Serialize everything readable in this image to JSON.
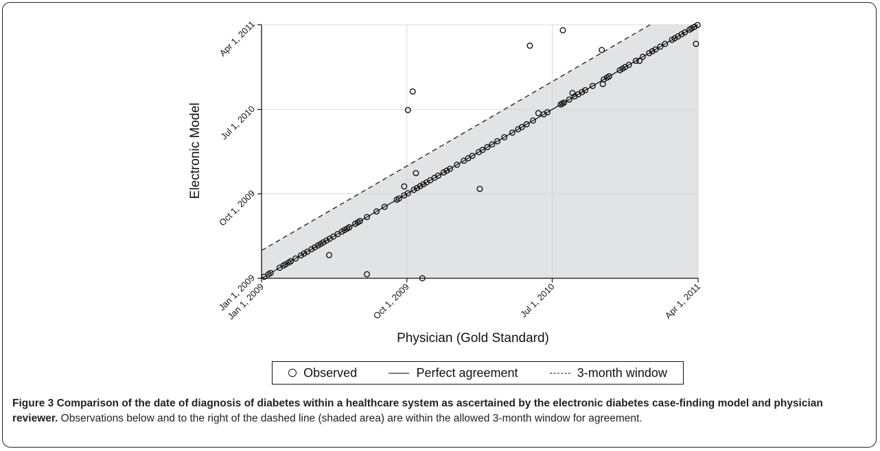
{
  "chart_data": {
    "type": "scatter",
    "xlabel": "Physician (Gold Standard)",
    "ylabel": "Electronic Model",
    "x_tick_labels": [
      "Jan 1, 2009",
      "Oct 1, 2009",
      "Jul 1, 2010",
      "Apr 1, 2011"
    ],
    "y_tick_labels": [
      "Jan 1, 2009",
      "Oct 1, 2009",
      "Jul 1, 2010",
      "Apr 1, 2011"
    ],
    "xlim": [
      "2009-01-01",
      "2011-04-01"
    ],
    "ylim": [
      "2009-01-01",
      "2011-04-01"
    ],
    "grid": true,
    "legend": [
      "Observed",
      "Perfect agreement",
      "3-month window"
    ],
    "legend_placement": "bottom",
    "shaded_region": "area below dashed line",
    "window_months": 3,
    "series": [
      {
        "name": "Observed",
        "points": [
          [
            "2009-01-06",
            "2009-01-06"
          ],
          [
            "2009-01-14",
            "2009-01-14"
          ],
          [
            "2009-01-18",
            "2009-01-18"
          ],
          [
            "2009-02-04",
            "2009-02-04"
          ],
          [
            "2009-02-11",
            "2009-02-11"
          ],
          [
            "2009-02-15",
            "2009-02-15"
          ],
          [
            "2009-02-21",
            "2009-02-21"
          ],
          [
            "2009-02-25",
            "2009-02-25"
          ],
          [
            "2009-03-06",
            "2009-03-06"
          ],
          [
            "2009-03-16",
            "2009-03-16"
          ],
          [
            "2009-03-22",
            "2009-03-22"
          ],
          [
            "2009-03-28",
            "2009-03-28"
          ],
          [
            "2009-04-05",
            "2009-04-05"
          ],
          [
            "2009-04-11",
            "2009-04-11"
          ],
          [
            "2009-04-17",
            "2009-04-17"
          ],
          [
            "2009-04-22",
            "2009-04-22"
          ],
          [
            "2009-04-27",
            "2009-04-27"
          ],
          [
            "2009-05-03",
            "2009-05-03"
          ],
          [
            "2009-05-09",
            "2009-05-09"
          ],
          [
            "2009-05-16",
            "2009-05-16"
          ],
          [
            "2009-05-24",
            "2009-05-24"
          ],
          [
            "2009-06-01",
            "2009-06-01"
          ],
          [
            "2009-06-06",
            "2009-06-06"
          ],
          [
            "2009-06-11",
            "2009-06-11"
          ],
          [
            "2009-06-15",
            "2009-06-15"
          ],
          [
            "2009-06-26",
            "2009-06-26"
          ],
          [
            "2009-07-01",
            "2009-07-01"
          ],
          [
            "2009-07-05",
            "2009-07-05"
          ],
          [
            "2009-07-18",
            "2009-07-18"
          ],
          [
            "2009-08-05",
            "2009-08-05"
          ],
          [
            "2009-08-20",
            "2009-08-20"
          ],
          [
            "2009-09-12",
            "2009-09-12"
          ],
          [
            "2009-09-16",
            "2009-09-16"
          ],
          [
            "2009-09-26",
            "2009-09-26"
          ],
          [
            "2009-10-03",
            "2009-10-03"
          ],
          [
            "2009-10-14",
            "2009-10-14"
          ],
          [
            "2009-10-20",
            "2009-10-20"
          ],
          [
            "2009-10-26",
            "2009-10-26"
          ],
          [
            "2009-11-01",
            "2009-11-01"
          ],
          [
            "2009-11-07",
            "2009-11-07"
          ],
          [
            "2009-11-14",
            "2009-11-14"
          ],
          [
            "2009-11-22",
            "2009-11-22"
          ],
          [
            "2009-11-29",
            "2009-11-29"
          ],
          [
            "2009-12-09",
            "2009-12-09"
          ],
          [
            "2009-12-15",
            "2009-12-15"
          ],
          [
            "2009-12-21",
            "2009-12-21"
          ],
          [
            "2010-01-03",
            "2010-01-03"
          ],
          [
            "2010-01-16",
            "2010-01-16"
          ],
          [
            "2010-01-24",
            "2010-01-24"
          ],
          [
            "2010-02-01",
            "2010-02-01"
          ],
          [
            "2010-02-13",
            "2010-02-13"
          ],
          [
            "2010-02-20",
            "2010-02-20"
          ],
          [
            "2010-03-01",
            "2010-03-01"
          ],
          [
            "2010-03-10",
            "2010-03-10"
          ],
          [
            "2010-03-20",
            "2010-03-20"
          ],
          [
            "2010-04-02",
            "2010-04-02"
          ],
          [
            "2010-04-17",
            "2010-04-17"
          ],
          [
            "2010-04-28",
            "2010-04-28"
          ],
          [
            "2010-05-05",
            "2010-05-05"
          ],
          [
            "2010-05-14",
            "2010-05-14"
          ],
          [
            "2010-05-26",
            "2010-05-26"
          ],
          [
            "2010-06-15",
            "2010-06-15"
          ],
          [
            "2010-06-22",
            "2010-06-22"
          ],
          [
            "2010-07-17",
            "2010-07-17"
          ],
          [
            "2010-07-20",
            "2010-07-20"
          ],
          [
            "2010-07-23",
            "2010-07-23"
          ],
          [
            "2010-08-02",
            "2010-08-02"
          ],
          [
            "2010-08-12",
            "2010-08-12"
          ],
          [
            "2010-08-19",
            "2010-08-19"
          ],
          [
            "2010-08-26",
            "2010-08-26"
          ],
          [
            "2010-09-01",
            "2010-09-01"
          ],
          [
            "2010-09-15",
            "2010-09-15"
          ],
          [
            "2010-10-06",
            "2010-10-06"
          ],
          [
            "2010-10-12",
            "2010-10-12"
          ],
          [
            "2010-10-16",
            "2010-10-16"
          ],
          [
            "2010-11-05",
            "2010-11-05"
          ],
          [
            "2010-11-10",
            "2010-11-10"
          ],
          [
            "2010-11-15",
            "2010-11-15"
          ],
          [
            "2010-11-22",
            "2010-11-22"
          ],
          [
            "2010-12-05",
            "2010-12-05"
          ],
          [
            "2010-12-18",
            "2010-12-18"
          ],
          [
            "2010-12-30",
            "2010-12-30"
          ],
          [
            "2011-01-05",
            "2011-01-05"
          ],
          [
            "2011-01-11",
            "2011-01-11"
          ],
          [
            "2011-01-20",
            "2011-01-20"
          ],
          [
            "2011-01-29",
            "2011-01-29"
          ],
          [
            "2011-02-11",
            "2011-02-11"
          ],
          [
            "2011-02-16",
            "2011-02-16"
          ],
          [
            "2011-02-22",
            "2011-02-22"
          ],
          [
            "2011-03-01",
            "2011-03-01"
          ],
          [
            "2011-03-07",
            "2011-03-07"
          ],
          [
            "2011-03-16",
            "2011-03-16"
          ],
          [
            "2011-03-20",
            "2011-03-20"
          ],
          [
            "2011-03-25",
            "2011-03-25"
          ],
          [
            "2011-03-31",
            "2011-03-31"
          ],
          [
            "2009-09-26",
            "2009-10-25"
          ],
          [
            "2009-10-18",
            "2009-12-07"
          ],
          [
            "2010-08-08",
            "2010-08-23"
          ],
          [
            "2010-10-04",
            "2010-09-21"
          ],
          [
            "2010-12-12",
            "2010-12-05"
          ],
          [
            "2010-06-05",
            "2010-06-19"
          ],
          [
            "2010-10-02",
            "2011-01-09"
          ],
          [
            "2009-05-08",
            "2009-03-17"
          ],
          [
            "2009-07-18",
            "2009-01-14"
          ],
          [
            "2009-10-30",
            "2009-01-01"
          ],
          [
            "2010-02-15",
            "2009-10-17"
          ],
          [
            "2011-03-28",
            "2011-01-29"
          ],
          [
            "2009-10-03",
            "2010-06-29"
          ],
          [
            "2009-10-12",
            "2010-08-28"
          ],
          [
            "2010-05-20",
            "2011-01-23"
          ],
          [
            "2010-07-21",
            "2011-03-14"
          ]
        ]
      },
      {
        "name": "Perfect agreement",
        "line": [
          [
            "2009-01-01",
            "2009-01-01"
          ],
          [
            "2011-04-01",
            "2011-04-01"
          ]
        ]
      },
      {
        "name": "3-month window",
        "line": [
          [
            "2009-01-01",
            "2009-04-01"
          ],
          [
            "2011-01-01",
            "2011-04-01"
          ]
        ]
      }
    ]
  },
  "caption": {
    "title": "Figure 3 Comparison of the date of diagnosis of diabetes within a healthcare system as ascertained by the electronic diabetes case-finding model and physician reviewer.",
    "text": " Observations below and to the right of the dashed line (shaded area) are within the allowed 3-month window for agreement."
  },
  "colors": {
    "shade": "#e2e3e5",
    "grid": "#ffffff",
    "ink": "#111111"
  }
}
